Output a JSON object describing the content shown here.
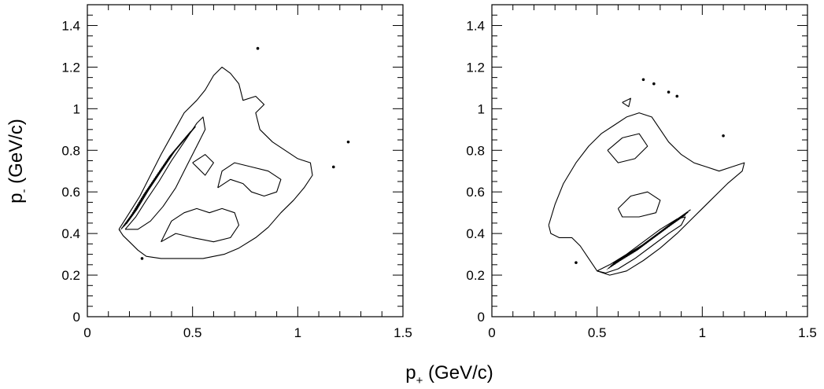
{
  "figure": {
    "xlabel_main": "p",
    "xlabel_sub": "+",
    "xlabel_unit": " (GeV/c)",
    "ylabel_main": "p",
    "ylabel_sub": "-",
    "ylabel_unit": " (GeV/c)"
  },
  "chart_data": [
    {
      "type": "contour",
      "xlim": [
        0,
        1.5
      ],
      "ylim": [
        0,
        1.5
      ],
      "x_ticks": [
        0,
        0.5,
        1,
        1.5
      ],
      "x_tick_labels": [
        "0",
        "0.5",
        "1",
        "1.5"
      ],
      "y_ticks": [
        0,
        0.2,
        0.4,
        0.6,
        0.8,
        1,
        1.2,
        1.4
      ],
      "y_tick_labels": [
        "0",
        "0.2",
        "0.4",
        "0.6",
        "0.8",
        "1",
        "1.2",
        "1.4"
      ],
      "grid": false,
      "contours": [
        [
          [
            0.15,
            0.42
          ],
          [
            0.17,
            0.39
          ],
          [
            0.2,
            0.36
          ],
          [
            0.24,
            0.32
          ],
          [
            0.28,
            0.29
          ],
          [
            0.35,
            0.28
          ],
          [
            0.45,
            0.28
          ],
          [
            0.55,
            0.28
          ],
          [
            0.65,
            0.3
          ],
          [
            0.72,
            0.33
          ],
          [
            0.8,
            0.38
          ],
          [
            0.86,
            0.43
          ],
          [
            0.92,
            0.5
          ],
          [
            0.98,
            0.56
          ],
          [
            1.03,
            0.62
          ],
          [
            1.07,
            0.68
          ],
          [
            1.06,
            0.74
          ],
          [
            1.0,
            0.76
          ],
          [
            0.94,
            0.8
          ],
          [
            0.88,
            0.84
          ],
          [
            0.82,
            0.9
          ],
          [
            0.8,
            0.98
          ],
          [
            0.84,
            1.02
          ],
          [
            0.8,
            1.06
          ],
          [
            0.74,
            1.04
          ],
          [
            0.72,
            1.12
          ],
          [
            0.68,
            1.17
          ],
          [
            0.64,
            1.2
          ],
          [
            0.6,
            1.16
          ],
          [
            0.56,
            1.09
          ],
          [
            0.52,
            1.04
          ],
          [
            0.46,
            0.98
          ],
          [
            0.4,
            0.87
          ],
          [
            0.35,
            0.78
          ],
          [
            0.3,
            0.68
          ],
          [
            0.25,
            0.58
          ],
          [
            0.2,
            0.5
          ],
          [
            0.15,
            0.42
          ]
        ],
        [
          [
            0.18,
            0.42
          ],
          [
            0.23,
            0.48
          ],
          [
            0.28,
            0.56
          ],
          [
            0.34,
            0.65
          ],
          [
            0.4,
            0.75
          ],
          [
            0.46,
            0.84
          ],
          [
            0.52,
            0.93
          ],
          [
            0.55,
            0.96
          ],
          [
            0.56,
            0.9
          ],
          [
            0.52,
            0.82
          ],
          [
            0.47,
            0.72
          ],
          [
            0.42,
            0.62
          ],
          [
            0.36,
            0.53
          ],
          [
            0.3,
            0.46
          ],
          [
            0.24,
            0.42
          ],
          [
            0.18,
            0.42
          ]
        ],
        [
          [
            0.35,
            0.36
          ],
          [
            0.42,
            0.4
          ],
          [
            0.5,
            0.38
          ],
          [
            0.6,
            0.36
          ],
          [
            0.68,
            0.38
          ],
          [
            0.72,
            0.44
          ],
          [
            0.7,
            0.5
          ],
          [
            0.64,
            0.52
          ],
          [
            0.58,
            0.5
          ],
          [
            0.52,
            0.52
          ],
          [
            0.46,
            0.5
          ],
          [
            0.4,
            0.46
          ],
          [
            0.35,
            0.36
          ]
        ],
        [
          [
            0.62,
            0.62
          ],
          [
            0.68,
            0.66
          ],
          [
            0.74,
            0.64
          ],
          [
            0.78,
            0.6
          ],
          [
            0.84,
            0.58
          ],
          [
            0.9,
            0.6
          ],
          [
            0.92,
            0.66
          ],
          [
            0.86,
            0.7
          ],
          [
            0.78,
            0.72
          ],
          [
            0.7,
            0.74
          ],
          [
            0.64,
            0.7
          ],
          [
            0.62,
            0.62
          ]
        ],
        [
          [
            0.5,
            0.74
          ],
          [
            0.56,
            0.78
          ],
          [
            0.6,
            0.74
          ],
          [
            0.56,
            0.68
          ],
          [
            0.5,
            0.74
          ]
        ]
      ],
      "dense_band": [
        [
          0.17,
          0.43
        ],
        [
          0.22,
          0.5
        ],
        [
          0.28,
          0.6
        ],
        [
          0.34,
          0.69
        ],
        [
          0.4,
          0.78
        ],
        [
          0.45,
          0.84
        ],
        [
          0.5,
          0.9
        ]
      ],
      "points": [
        [
          0.81,
          1.29
        ],
        [
          0.26,
          0.28
        ],
        [
          1.24,
          0.84
        ],
        [
          1.17,
          0.72
        ]
      ]
    },
    {
      "type": "contour",
      "xlim": [
        0,
        1.5
      ],
      "ylim": [
        0,
        1.5
      ],
      "x_ticks": [
        0,
        0.5,
        1,
        1.5
      ],
      "x_tick_labels": [
        "0",
        "0.5",
        "1",
        "1.5"
      ],
      "y_ticks": [
        0,
        0.2,
        0.4,
        0.6,
        0.8,
        1,
        1.2,
        1.4
      ],
      "y_tick_labels": [
        "0",
        "0.2",
        "0.4",
        "0.6",
        "0.8",
        "1",
        "1.2",
        "1.4"
      ],
      "grid": false,
      "contours": [
        [
          [
            0.27,
            0.44
          ],
          [
            0.3,
            0.54
          ],
          [
            0.34,
            0.64
          ],
          [
            0.4,
            0.74
          ],
          [
            0.46,
            0.82
          ],
          [
            0.52,
            0.88
          ],
          [
            0.58,
            0.92
          ],
          [
            0.64,
            0.96
          ],
          [
            0.7,
            0.98
          ],
          [
            0.76,
            0.96
          ],
          [
            0.8,
            0.9
          ],
          [
            0.84,
            0.84
          ],
          [
            0.9,
            0.78
          ],
          [
            0.96,
            0.74
          ],
          [
            1.02,
            0.72
          ],
          [
            1.08,
            0.7
          ],
          [
            1.14,
            0.72
          ],
          [
            1.2,
            0.74
          ],
          [
            1.19,
            0.7
          ],
          [
            1.12,
            0.64
          ],
          [
            1.04,
            0.56
          ],
          [
            0.96,
            0.48
          ],
          [
            0.88,
            0.4
          ],
          [
            0.8,
            0.33
          ],
          [
            0.72,
            0.27
          ],
          [
            0.64,
            0.22
          ],
          [
            0.56,
            0.2
          ],
          [
            0.5,
            0.22
          ],
          [
            0.46,
            0.28
          ],
          [
            0.42,
            0.34
          ],
          [
            0.38,
            0.38
          ],
          [
            0.32,
            0.38
          ],
          [
            0.28,
            0.4
          ],
          [
            0.27,
            0.44
          ]
        ],
        [
          [
            0.5,
            0.22
          ],
          [
            0.56,
            0.25
          ],
          [
            0.64,
            0.3
          ],
          [
            0.72,
            0.36
          ],
          [
            0.8,
            0.42
          ],
          [
            0.88,
            0.47
          ],
          [
            0.92,
            0.48
          ],
          [
            0.9,
            0.44
          ],
          [
            0.84,
            0.4
          ],
          [
            0.76,
            0.34
          ],
          [
            0.68,
            0.28
          ],
          [
            0.6,
            0.23
          ],
          [
            0.54,
            0.21
          ],
          [
            0.5,
            0.22
          ]
        ],
        [
          [
            0.6,
            0.52
          ],
          [
            0.66,
            0.58
          ],
          [
            0.74,
            0.6
          ],
          [
            0.8,
            0.56
          ],
          [
            0.78,
            0.5
          ],
          [
            0.7,
            0.48
          ],
          [
            0.62,
            0.48
          ],
          [
            0.6,
            0.52
          ]
        ],
        [
          [
            0.55,
            0.8
          ],
          [
            0.62,
            0.86
          ],
          [
            0.7,
            0.88
          ],
          [
            0.74,
            0.82
          ],
          [
            0.68,
            0.76
          ],
          [
            0.6,
            0.74
          ],
          [
            0.55,
            0.8
          ]
        ],
        [
          [
            0.62,
            1.03
          ],
          [
            0.66,
            1.05
          ],
          [
            0.65,
            1.01
          ],
          [
            0.62,
            1.03
          ]
        ]
      ],
      "dense_band": [
        [
          0.56,
          0.24
        ],
        [
          0.62,
          0.28
        ],
        [
          0.7,
          0.33
        ],
        [
          0.78,
          0.39
        ],
        [
          0.86,
          0.45
        ],
        [
          0.93,
          0.5
        ]
      ],
      "points": [
        [
          0.72,
          1.14
        ],
        [
          0.77,
          1.12
        ],
        [
          0.84,
          1.08
        ],
        [
          0.88,
          1.06
        ],
        [
          1.1,
          0.87
        ],
        [
          0.4,
          0.26
        ]
      ]
    }
  ]
}
